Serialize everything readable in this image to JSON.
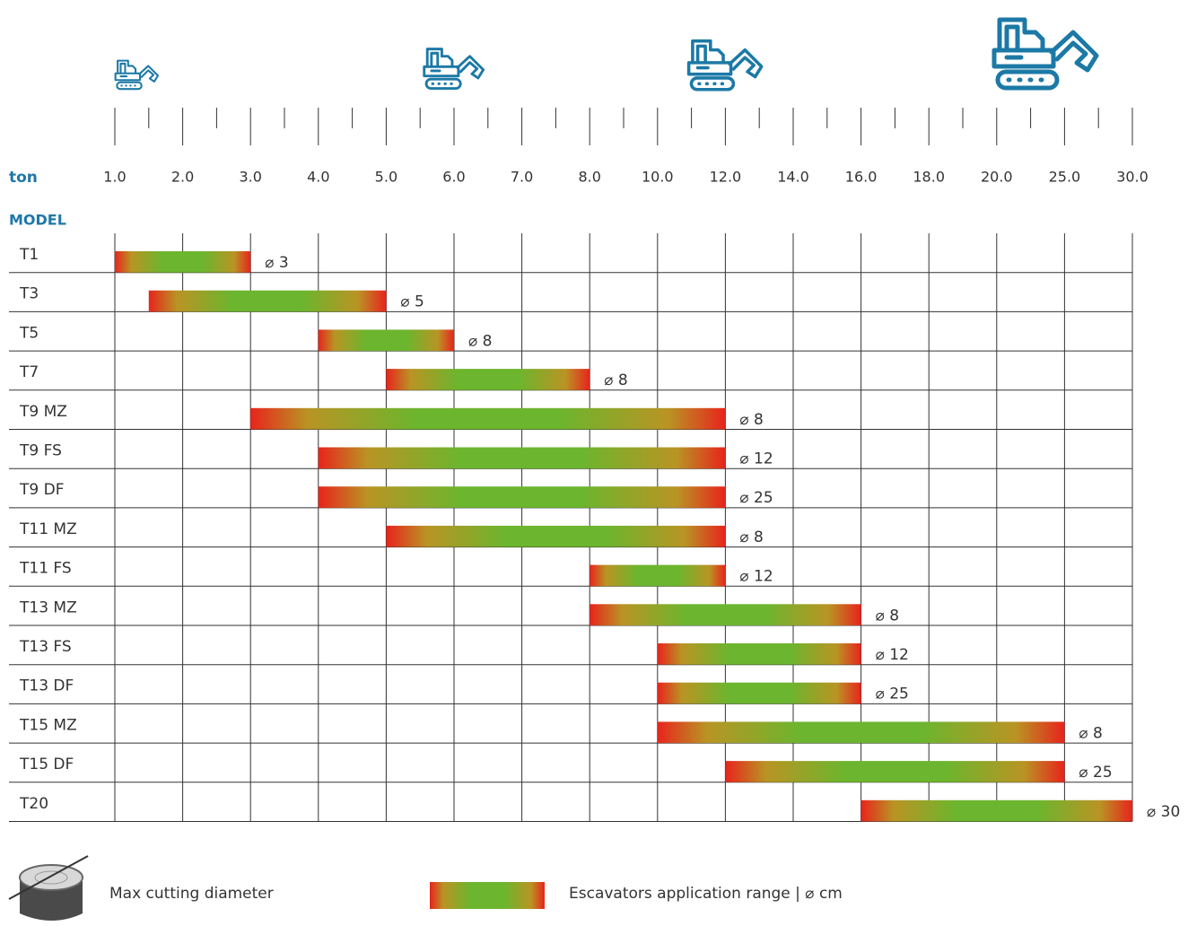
{
  "chart_data": {
    "type": "range-bar",
    "x_label": "ton",
    "y_label": "MODEL",
    "categories": [
      "T1",
      "T3",
      "T5",
      "T7",
      "T9 MZ",
      "T9 FS",
      "T9 DF",
      "T11 MZ",
      "T11 FS",
      "T13 MZ",
      "T13 FS",
      "T13 DF",
      "T15 MZ",
      "T15 DF",
      "T20"
    ],
    "low": [
      1,
      1.5,
      4,
      5,
      3,
      4,
      4,
      5,
      8,
      8,
      10,
      10,
      10,
      12,
      16
    ],
    "high": [
      3,
      5,
      6,
      8,
      12,
      12,
      12,
      12,
      12,
      16,
      16,
      16,
      25,
      25,
      30
    ],
    "diameter_labels": [
      "⌀ 3",
      "⌀ 5",
      "⌀ 8",
      "⌀ 8",
      "⌀ 8",
      "⌀ 12",
      "⌀ 25",
      "⌀ 8",
      "⌀ 12",
      "⌀ 8",
      "⌀ 12",
      "⌀ 25",
      "⌀ 8",
      "⌀ 25",
      "⌀ 30"
    ],
    "xlim": [
      1,
      30
    ],
    "xticks": [
      {
        "value": 1,
        "label": "1.0"
      },
      {
        "value": 2,
        "label": "2.0"
      },
      {
        "value": 3,
        "label": "3.0"
      },
      {
        "value": 4,
        "label": "4.0"
      },
      {
        "value": 5,
        "label": "5.0"
      },
      {
        "value": 6,
        "label": "6.0"
      },
      {
        "value": 7,
        "label": "7.0"
      },
      {
        "value": 8,
        "label": "8.0"
      },
      {
        "value": 10,
        "label": "10.0"
      },
      {
        "value": 12,
        "label": "12.0"
      },
      {
        "value": 14,
        "label": "14.0"
      },
      {
        "value": 16,
        "label": "16.0"
      },
      {
        "value": 18,
        "label": "18.0"
      },
      {
        "value": 20,
        "label": "20.0"
      },
      {
        "value": 25,
        "label": "25.0"
      },
      {
        "value": 30,
        "label": "30.0"
      }
    ],
    "color_ends": "#e8241c",
    "color_middle": "#6cb52e",
    "legend": {
      "diameter": "Max cutting diameter",
      "range": "Escavators application range | ⌀ cm"
    }
  }
}
